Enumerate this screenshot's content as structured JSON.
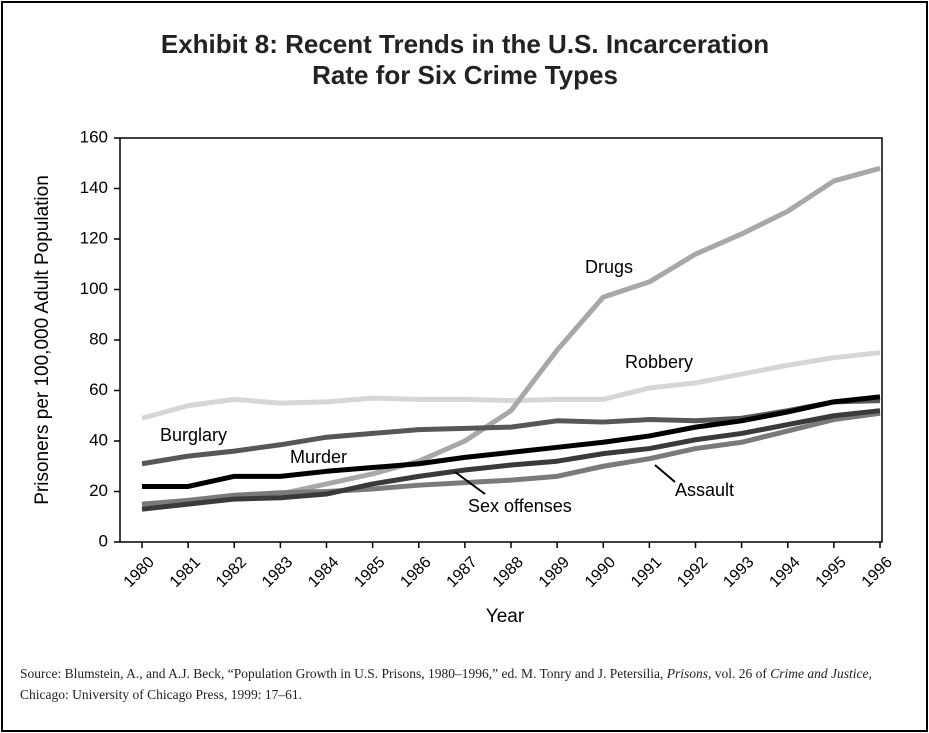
{
  "chart_data": {
    "type": "line",
    "title": [
      "Exhibit 8: Recent Trends in the U.S. Incarceration",
      "Rate for Six Crime Types"
    ],
    "x_label": "Year",
    "y_label": "Prisoners per 100,000 Adult Population",
    "categories": [
      "1980",
      "1981",
      "1982",
      "1983",
      "1984",
      "1985",
      "1986",
      "1987",
      "1988",
      "1989",
      "1990",
      "1991",
      "1992",
      "1993",
      "1994",
      "1995",
      "1996"
    ],
    "ylim": [
      0,
      160
    ],
    "yticks": [
      0,
      20,
      40,
      60,
      80,
      100,
      120,
      140,
      160
    ],
    "series": [
      {
        "name": "Robbery",
        "color": "#d6d6d6",
        "values": [
          49,
          54,
          56.5,
          55,
          55.5,
          57,
          56.5,
          56.5,
          56,
          56.5,
          56.5,
          61,
          63,
          66.5,
          70,
          73,
          75
        ]
      },
      {
        "name": "Drugs",
        "color": "#a8a8a8",
        "values": [
          15,
          16,
          18,
          19,
          23,
          27,
          32,
          40,
          52,
          76,
          97,
          103,
          114,
          122,
          131,
          143,
          148
        ]
      },
      {
        "name": "Burglary",
        "color": "#575757",
        "values": [
          31,
          34,
          36,
          38.5,
          41.5,
          43,
          44.5,
          45,
          45.5,
          48,
          47.5,
          48.5,
          48,
          49,
          52,
          55.5,
          56
        ]
      },
      {
        "name": "Sex offenses",
        "color": "#7a7a7a",
        "values": [
          15,
          16.5,
          18.5,
          19.5,
          20,
          21,
          22.5,
          23.5,
          24.5,
          26,
          30,
          33,
          37,
          39.5,
          44,
          48.5,
          51
        ]
      },
      {
        "name": "Assault",
        "color": "#3a3a3a",
        "values": [
          13,
          15,
          17,
          17.5,
          19,
          23,
          26,
          28.5,
          30.5,
          32,
          35,
          37,
          40.5,
          43,
          46.5,
          50,
          52
        ]
      },
      {
        "name": "Murder",
        "color": "#000000",
        "values": [
          22,
          22,
          26,
          26,
          28,
          29.5,
          31,
          33.5,
          35.5,
          37.5,
          39.5,
          42,
          45.5,
          48,
          51.5,
          55.5,
          57.5
        ]
      }
    ],
    "source": [
      "Source: Blumstein, A., and A.J. Beck, “Population Growth in U.S. Prisons, 1980–1996,” ed. M. Tonry and J. Petersilia, ",
      "Prisons,",
      " vol. 26 of ",
      "Crime and Justice,",
      " Chicago: University of Chicago Press, 1999: 17–61."
    ]
  }
}
